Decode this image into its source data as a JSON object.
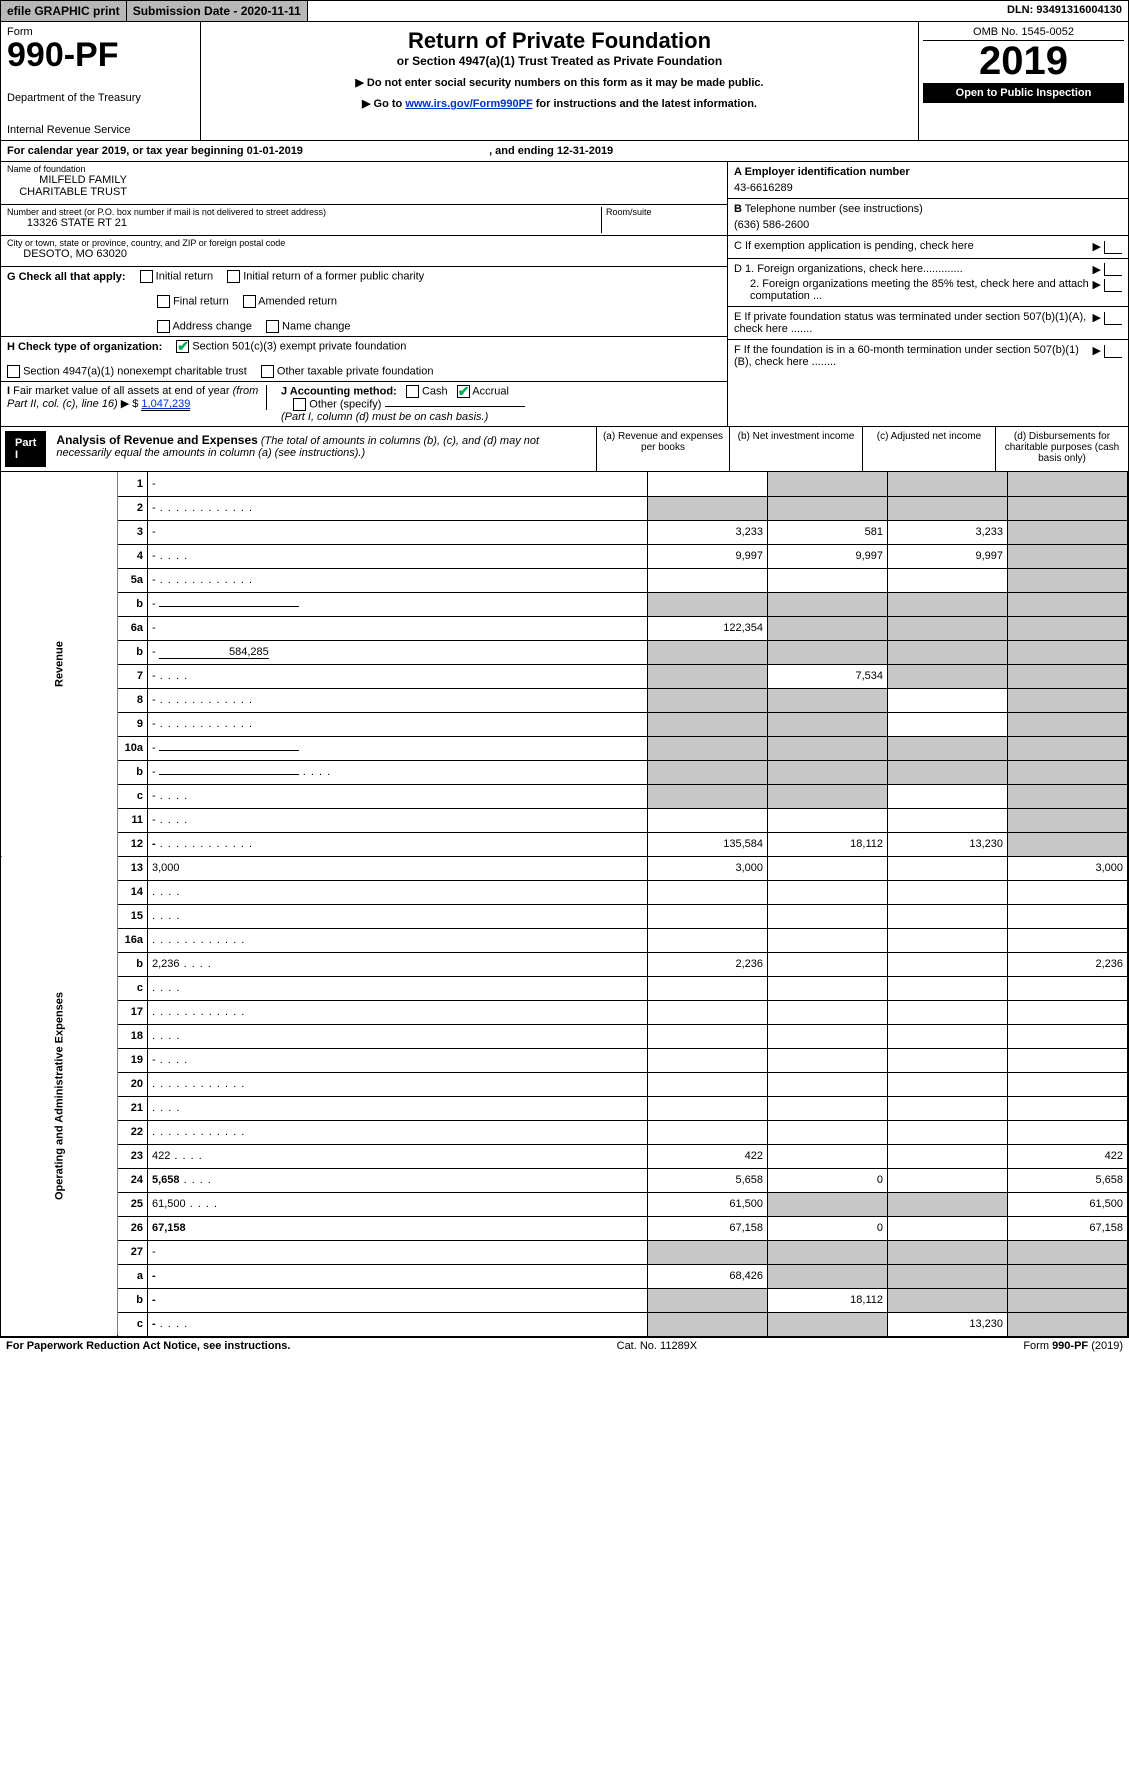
{
  "topbar": {
    "efile": "efile GRAPHIC print",
    "subdate_label": "Submission Date - 2020-11-11",
    "dln": "DLN: 93491316004130"
  },
  "header": {
    "form_word": "Form",
    "form_no": "990-PF",
    "dept": "Department of the Treasury",
    "irs": "Internal Revenue Service",
    "title": "Return of Private Foundation",
    "subtitle": "or Section 4947(a)(1) Trust Treated as Private Foundation",
    "note1": "▶ Do not enter social security numbers on this form as it may be made public.",
    "note2_pre": "▶ Go to ",
    "note2_link": "www.irs.gov/Form990PF",
    "note2_post": " for instructions and the latest information.",
    "omb": "OMB No. 1545-0052",
    "year": "2019",
    "open": "Open to Public Inspection"
  },
  "calendar": {
    "text_pre": "For calendar year 2019, or tax year beginning ",
    "begin": "01-01-2019",
    "text_mid": " , and ending ",
    "end": "12-31-2019"
  },
  "info_left": {
    "name_lbl": "Name of foundation",
    "name_val": "MILFELD FAMILY CHARITABLE TRUST",
    "addr_lbl": "Number and street (or P.O. box number if mail is not delivered to street address)",
    "addr_val": "13326 STATE RT 21",
    "room_lbl": "Room/suite",
    "city_lbl": "City or town, state or province, country, and ZIP or foreign postal code",
    "city_val": "DESOTO, MO  63020"
  },
  "info_right": {
    "a_lbl": "A Employer identification number",
    "a_val": "43-6616289",
    "b_lbl": "B Telephone number (see instructions)",
    "b_val": "(636) 586-2600",
    "c_lbl": "C If exemption application is pending, check here",
    "d1": "D 1. Foreign organizations, check here.............",
    "d2": "2. Foreign organizations meeting the 85% test, check here and attach computation ...",
    "e": "E  If private foundation status was terminated under section 507(b)(1)(A), check here .......",
    "f": "F  If the foundation is in a 60-month termination under section 507(b)(1)(B), check here ........"
  },
  "g": {
    "label": "G Check all that apply:",
    "opts": [
      "Initial return",
      "Initial return of a former public charity",
      "Final return",
      "Amended return",
      "Address change",
      "Name change"
    ]
  },
  "h": {
    "label": "H Check type of organization:",
    "o1": "Section 501(c)(3) exempt private foundation",
    "o2": "Section 4947(a)(1) nonexempt charitable trust",
    "o3": "Other taxable private foundation"
  },
  "i": {
    "label": "I Fair market value of all assets at end of year (from Part II, col. (c), line 16)",
    "arrow": "▶ $",
    "val": "1,047,239"
  },
  "j": {
    "label": "J Accounting method:",
    "cash": "Cash",
    "accrual": "Accrual",
    "other": "Other (specify)",
    "note": "(Part I, column (d) must be on cash basis.)"
  },
  "part1": {
    "tag": "Part I",
    "title": "Analysis of Revenue and Expenses",
    "note": "(The total of amounts in columns (b), (c), and (d) may not necessarily equal the amounts in column (a) (see instructions).)",
    "col_a": "(a)   Revenue and expenses per books",
    "col_b": "(b)   Net investment income",
    "col_c": "(c)   Adjusted net income",
    "col_d": "(d)   Disbursements for charitable purposes (cash basis only)"
  },
  "side": {
    "rev": "Revenue",
    "exp": "Operating and Administrative Expenses"
  },
  "rows": [
    {
      "n": "1",
      "d": "-",
      "a": "",
      "b": "-",
      "c": "-"
    },
    {
      "n": "2",
      "d": "-",
      "a": "-",
      "b": "-",
      "c": "-",
      "dots": true,
      "bold_not": true
    },
    {
      "n": "3",
      "d": "-",
      "a": "3,233",
      "b": "581",
      "c": "3,233"
    },
    {
      "n": "4",
      "d": "-",
      "a": "9,997",
      "b": "9,997",
      "c": "9,997",
      "dots_s": true
    },
    {
      "n": "5a",
      "d": "-",
      "a": "",
      "b": "",
      "c": "",
      "dots": true
    },
    {
      "n": "b",
      "d": "-",
      "a": "-",
      "b": "-",
      "c": "-",
      "uline": true
    },
    {
      "n": "6a",
      "d": "-",
      "a": "122,354",
      "b": "-",
      "c": "-"
    },
    {
      "n": "b",
      "d": "-",
      "a": "-",
      "b": "-",
      "c": "-",
      "ulineval": "584,285"
    },
    {
      "n": "7",
      "d": "-",
      "a": "-",
      "b": "7,534",
      "c": "-",
      "dots_s": true
    },
    {
      "n": "8",
      "d": "-",
      "a": "-",
      "b": "-",
      "c": "",
      "dots": true
    },
    {
      "n": "9",
      "d": "-",
      "a": "-",
      "b": "-",
      "c": "",
      "dots": true
    },
    {
      "n": "10a",
      "d": "-",
      "a": "-",
      "b": "-",
      "c": "-",
      "uline": true
    },
    {
      "n": "b",
      "d": "-",
      "a": "-",
      "b": "-",
      "c": "-",
      "dots_s": true,
      "uline": true
    },
    {
      "n": "c",
      "d": "-",
      "a": "-",
      "b": "-",
      "c": "",
      "dots_s": true
    },
    {
      "n": "11",
      "d": "-",
      "a": "",
      "b": "",
      "c": "",
      "dots_s": true
    },
    {
      "n": "12",
      "d": "-",
      "a": "135,584",
      "b": "18,112",
      "c": "13,230",
      "bold": true,
      "dots": true
    },
    {
      "n": "13",
      "d": "3,000",
      "a": "3,000",
      "b": "",
      "c": ""
    },
    {
      "n": "14",
      "d": "",
      "a": "",
      "b": "",
      "c": "",
      "dots_s": true
    },
    {
      "n": "15",
      "d": "",
      "a": "",
      "b": "",
      "c": "",
      "dots_s": true
    },
    {
      "n": "16a",
      "d": "",
      "a": "",
      "b": "",
      "c": "",
      "dots": true
    },
    {
      "n": "b",
      "d": "2,236",
      "a": "2,236",
      "b": "",
      "c": "",
      "dots_s": true
    },
    {
      "n": "c",
      "d": "",
      "a": "",
      "b": "",
      "c": "",
      "dots_s": true
    },
    {
      "n": "17",
      "d": "",
      "a": "",
      "b": "",
      "c": "",
      "dots": true
    },
    {
      "n": "18",
      "d": "",
      "a": "",
      "b": "",
      "c": "",
      "dots_s": true
    },
    {
      "n": "19",
      "d": "-",
      "a": "",
      "b": "",
      "c": "",
      "dots_s": true
    },
    {
      "n": "20",
      "d": "",
      "a": "",
      "b": "",
      "c": "",
      "dots": true
    },
    {
      "n": "21",
      "d": "",
      "a": "",
      "b": "",
      "c": "",
      "dots_s": true
    },
    {
      "n": "22",
      "d": "",
      "a": "",
      "b": "",
      "c": "",
      "dots": true
    },
    {
      "n": "23",
      "d": "422",
      "a": "422",
      "b": "",
      "c": "",
      "dots_s": true
    },
    {
      "n": "24",
      "d": "5,658",
      "a": "5,658",
      "b": "0",
      "c": "",
      "bold": true,
      "dots_s": true,
      "twoline": true
    },
    {
      "n": "25",
      "d": "61,500",
      "a": "61,500",
      "b": "-",
      "c": "-",
      "dots_s": true
    },
    {
      "n": "26",
      "d": "67,158",
      "a": "67,158",
      "b": "0",
      "c": "",
      "bold": true
    },
    {
      "n": "27",
      "d": "-",
      "a": "-",
      "b": "-",
      "c": "-"
    },
    {
      "n": "a",
      "d": "-",
      "a": "68,426",
      "b": "-",
      "c": "-",
      "bold": true
    },
    {
      "n": "b",
      "d": "-",
      "a": "-",
      "b": "18,112",
      "c": "-",
      "bold": true
    },
    {
      "n": "c",
      "d": "-",
      "a": "-",
      "b": "-",
      "c": "13,230",
      "bold": true,
      "dots_s": true
    }
  ],
  "footer": {
    "left": "For Paperwork Reduction Act Notice, see instructions.",
    "mid": "Cat. No. 11289X",
    "right": "Form 990-PF (2019)"
  },
  "colors": {
    "shaded": "#c8c8c8",
    "link": "#0033cc",
    "check": "#00aa55"
  }
}
